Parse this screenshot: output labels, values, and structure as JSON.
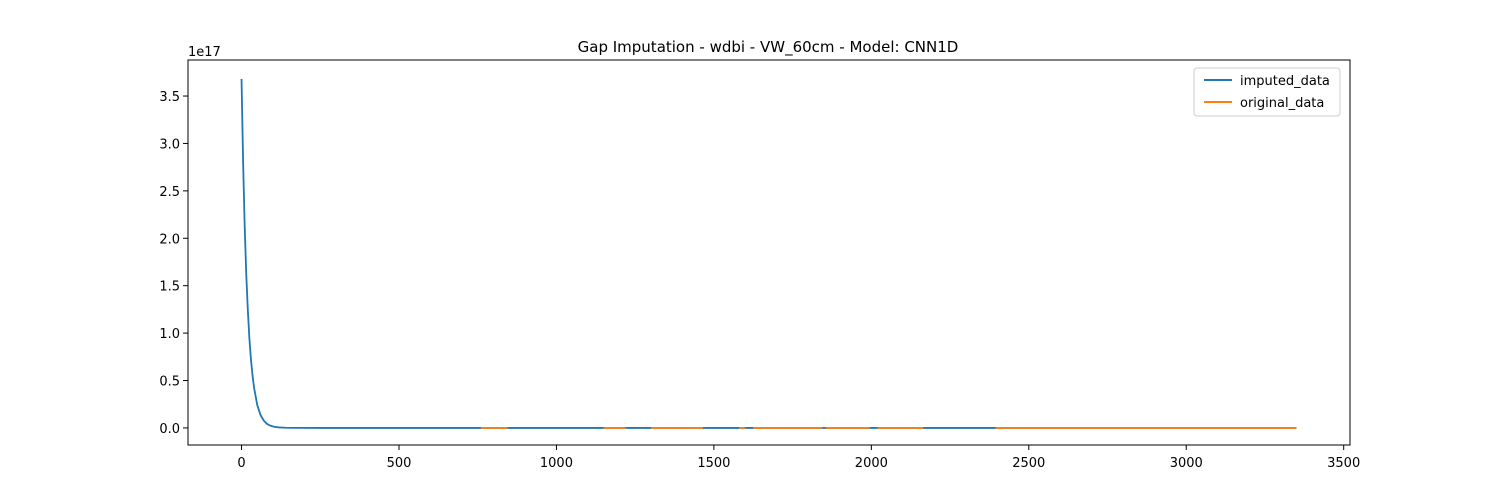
{
  "chart_data": {
    "type": "line",
    "title": "Gap Imputation - wdbi - VW_60cm - Model: CNN1D",
    "xlabel": "",
    "ylabel": "",
    "y_scale_label": "1e17",
    "xlim": [
      -170,
      3520
    ],
    "ylim": [
      -0.18,
      3.88
    ],
    "x_ticks": [
      0,
      500,
      1000,
      1500,
      2000,
      2500,
      3000,
      3500
    ],
    "x_tick_labels": [
      "0",
      "500",
      "1000",
      "1500",
      "2000",
      "2500",
      "3000",
      "3500"
    ],
    "y_ticks": [
      0.0,
      0.5,
      1.0,
      1.5,
      2.0,
      2.5,
      3.0,
      3.5
    ],
    "y_tick_labels": [
      "0.0",
      "0.5",
      "1.0",
      "1.5",
      "2.0",
      "2.5",
      "3.0",
      "3.5"
    ],
    "grid": false,
    "legend_position": "top-right",
    "series": [
      {
        "name": "imputed_data",
        "color": "#1f77b4",
        "x": [
          0,
          5,
          10,
          15,
          20,
          25,
          30,
          35,
          40,
          50,
          60,
          70,
          80,
          90,
          100,
          110,
          120,
          140,
          170,
          250,
          500,
          1000,
          1500,
          2000,
          2500,
          3000,
          3350
        ],
        "y": [
          3.68,
          2.8,
          2.13,
          1.62,
          1.24,
          0.94,
          0.72,
          0.55,
          0.42,
          0.24,
          0.14,
          0.08,
          0.045,
          0.026,
          0.015,
          0.009,
          0.005,
          0.002,
          0.0005,
          0.0,
          0.0,
          0.0,
          0.0,
          0.0,
          0.0,
          0.0,
          0.0
        ]
      },
      {
        "name": "original_data",
        "color": "#ff7f0e",
        "segments": [
          [
            760,
            845
          ],
          [
            1150,
            1220
          ],
          [
            1300,
            1465
          ],
          [
            1580,
            1600
          ],
          [
            1625,
            1845
          ],
          [
            1855,
            1995
          ],
          [
            2020,
            2165
          ],
          [
            2395,
            3350
          ]
        ],
        "value": 0.0
      }
    ]
  }
}
